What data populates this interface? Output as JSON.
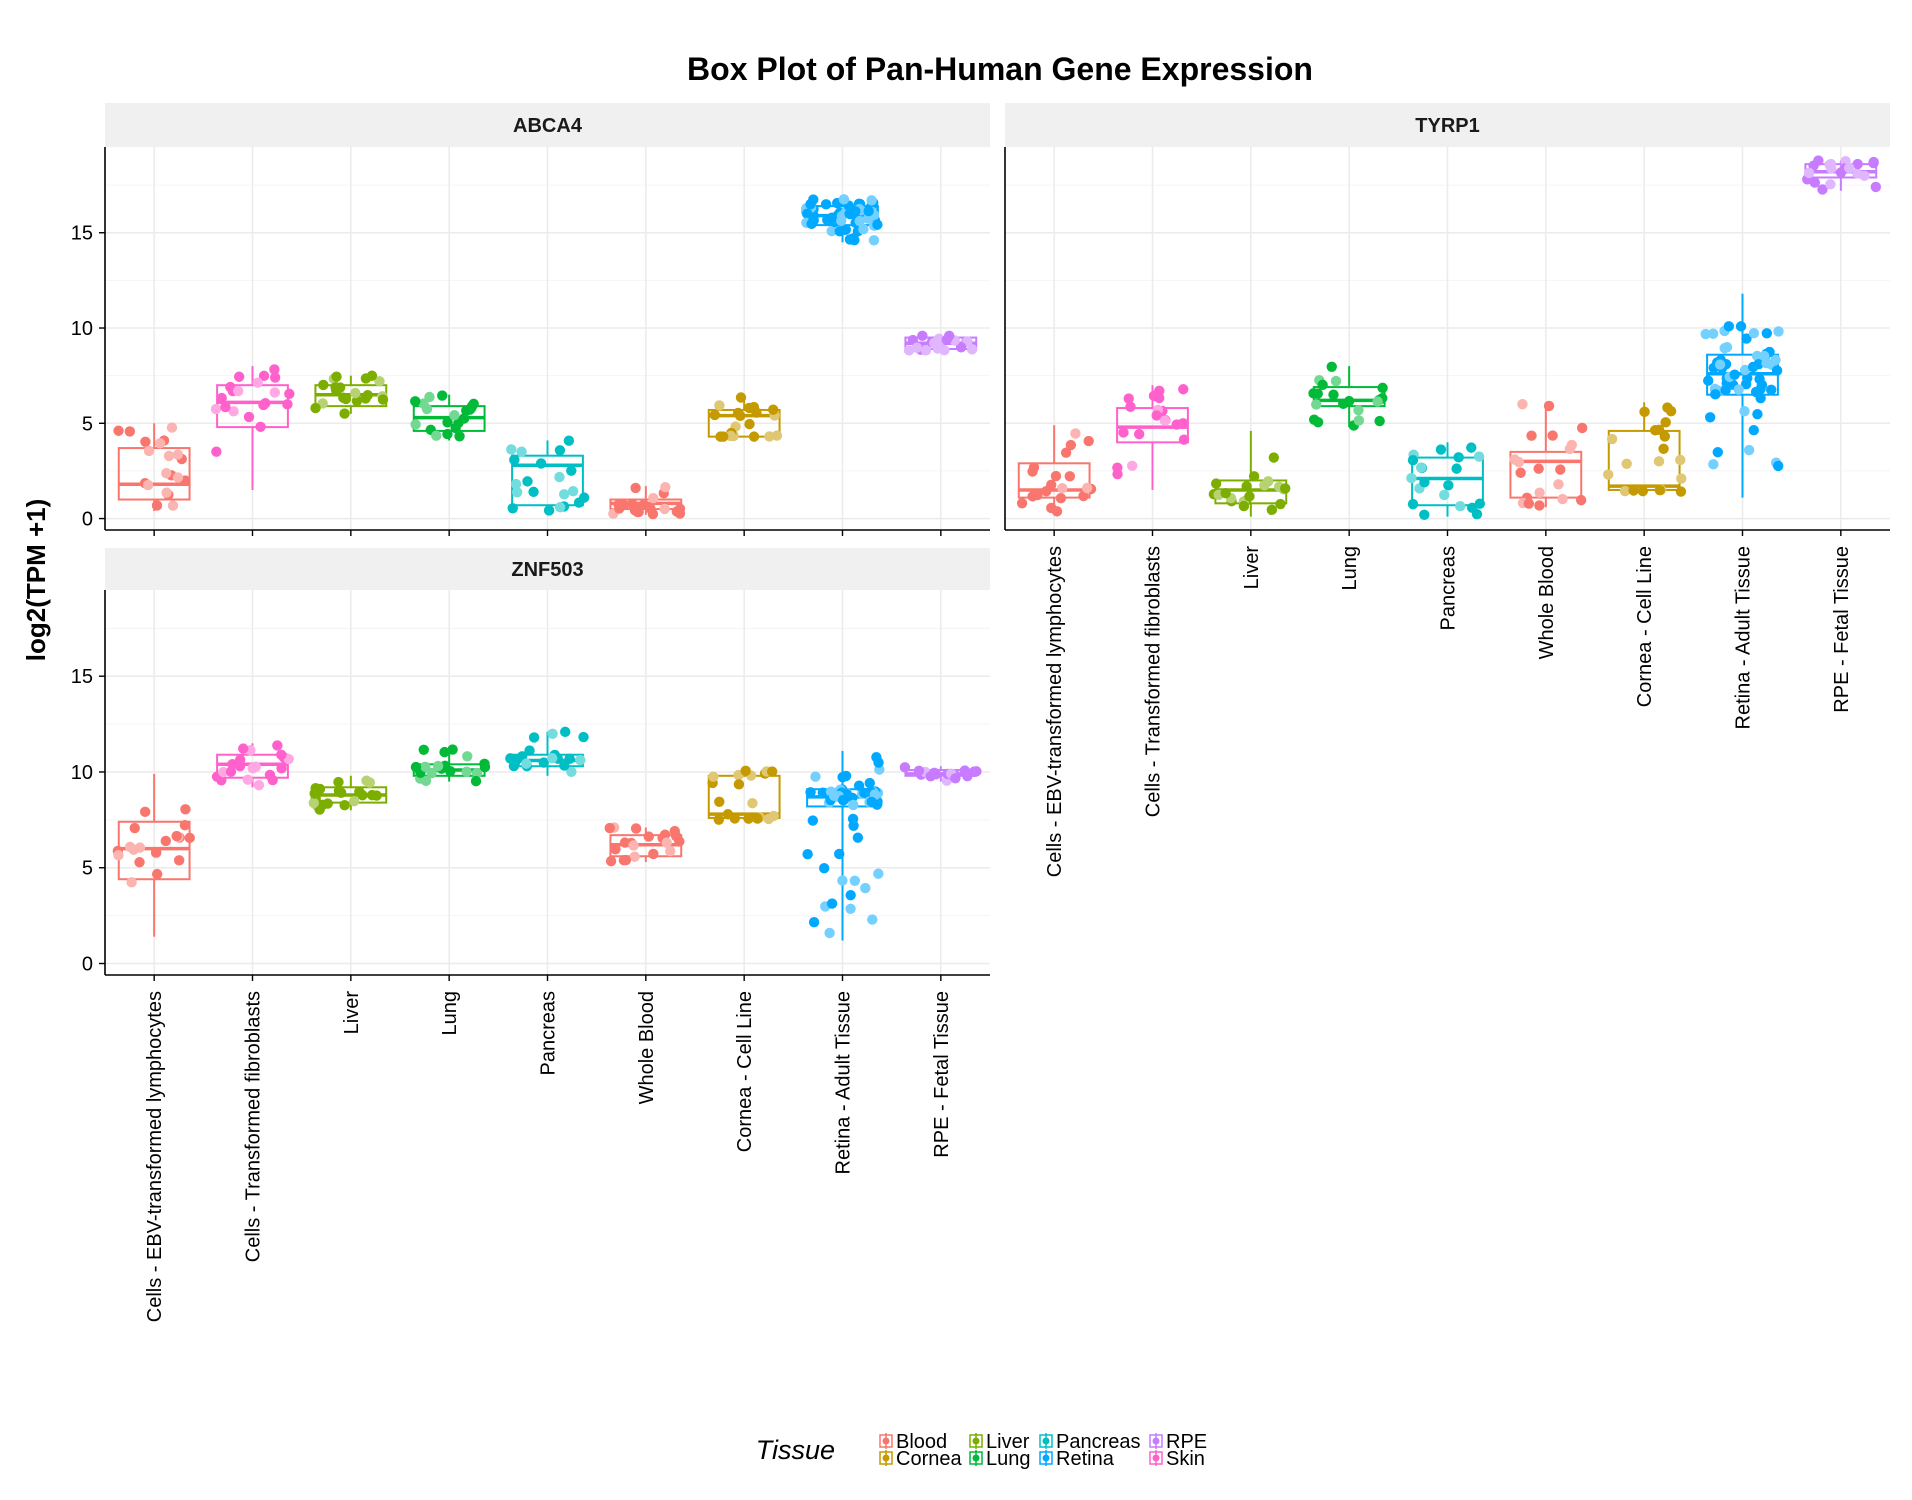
{
  "chart_data": {
    "type": "box",
    "title": "Box Plot of Pan-Human Gene Expression",
    "ylabel": "log2(TPM +1)",
    "ylim": [
      -0.6,
      19.5
    ],
    "yticks": [
      0,
      5,
      10,
      15
    ],
    "grid": true,
    "categories": [
      "Cells - EBV-transformed lymphocytes",
      "Cells - Transformed fibroblasts",
      "Liver",
      "Lung",
      "Pancreas",
      "Whole Blood",
      "Cornea - Cell Line",
      "Retina - Adult Tissue",
      "RPE - Fetal Tissue"
    ],
    "category_tissue": [
      "Blood",
      "Skin",
      "Liver",
      "Lung",
      "Pancreas",
      "Blood",
      "Cornea",
      "Retina",
      "RPE"
    ],
    "legend": {
      "title": "Tissue",
      "position": "bottom",
      "entries": [
        {
          "name": "Blood",
          "color": "#F8766D"
        },
        {
          "name": "Cornea",
          "color": "#C49A00"
        },
        {
          "name": "Liver",
          "color": "#7CAE00"
        },
        {
          "name": "Lung",
          "color": "#00BA38"
        },
        {
          "name": "Pancreas",
          "color": "#00BFC4"
        },
        {
          "name": "Retina",
          "color": "#00A9FF"
        },
        {
          "name": "RPE",
          "color": "#C77CFF"
        },
        {
          "name": "Skin",
          "color": "#FF61CC"
        }
      ]
    },
    "panels": [
      {
        "gene": "ABCA4",
        "boxes": [
          {
            "q1": 1.0,
            "median": 1.8,
            "q3": 3.7,
            "lo": 0.4,
            "hi": 5.0
          },
          {
            "q1": 4.8,
            "median": 6.1,
            "q3": 7.0,
            "lo": 1.5,
            "hi": 8.0
          },
          {
            "q1": 5.9,
            "median": 6.5,
            "q3": 7.0,
            "lo": 5.5,
            "hi": 7.5
          },
          {
            "q1": 4.6,
            "median": 5.3,
            "q3": 5.9,
            "lo": 4.1,
            "hi": 6.5
          },
          {
            "q1": 0.7,
            "median": 2.8,
            "q3": 3.3,
            "lo": 0.4,
            "hi": 4.1
          },
          {
            "q1": 0.5,
            "median": 0.8,
            "q3": 1.0,
            "lo": 0.2,
            "hi": 1.7
          },
          {
            "q1": 4.3,
            "median": 5.4,
            "q3": 5.7,
            "lo": 4.3,
            "hi": 6.5
          },
          {
            "q1": 15.4,
            "median": 15.9,
            "q3": 16.4,
            "lo": 14.5,
            "hi": 16.8
          },
          {
            "q1": 8.9,
            "median": 9.2,
            "q3": 9.5,
            "lo": 8.8,
            "hi": 9.6
          }
        ]
      },
      {
        "gene": "TYRP1",
        "boxes": [
          {
            "q1": 1.1,
            "median": 1.5,
            "q3": 2.9,
            "lo": 0.3,
            "hi": 4.9
          },
          {
            "q1": 4.0,
            "median": 4.8,
            "q3": 5.8,
            "lo": 1.5,
            "hi": 7.0
          },
          {
            "q1": 0.8,
            "median": 1.5,
            "q3": 2.0,
            "lo": 0.1,
            "hi": 4.6
          },
          {
            "q1": 5.9,
            "median": 6.2,
            "q3": 6.9,
            "lo": 4.8,
            "hi": 8.0
          },
          {
            "q1": 0.7,
            "median": 2.1,
            "q3": 3.2,
            "lo": 0.1,
            "hi": 4.0
          },
          {
            "q1": 1.1,
            "median": 3.0,
            "q3": 3.5,
            "lo": 0.6,
            "hi": 6.1
          },
          {
            "q1": 1.5,
            "median": 1.7,
            "q3": 4.6,
            "lo": 1.4,
            "hi": 6.1
          },
          {
            "q1": 6.5,
            "median": 7.6,
            "q3": 8.6,
            "lo": 1.1,
            "hi": 11.8
          },
          {
            "q1": 17.9,
            "median": 18.2,
            "q3": 18.6,
            "lo": 17.2,
            "hi": 18.8
          }
        ]
      },
      {
        "gene": "ZNF503",
        "boxes": [
          {
            "q1": 4.4,
            "median": 6.0,
            "q3": 7.4,
            "lo": 1.4,
            "hi": 9.9
          },
          {
            "q1": 9.7,
            "median": 10.4,
            "q3": 10.9,
            "lo": 9.2,
            "hi": 11.5
          },
          {
            "q1": 8.4,
            "median": 8.8,
            "q3": 9.2,
            "lo": 8.0,
            "hi": 9.8
          },
          {
            "q1": 9.8,
            "median": 10.1,
            "q3": 10.4,
            "lo": 9.5,
            "hi": 11.3
          },
          {
            "q1": 10.3,
            "median": 10.6,
            "q3": 10.9,
            "lo": 9.8,
            "hi": 12.1
          },
          {
            "q1": 5.6,
            "median": 6.2,
            "q3": 6.7,
            "lo": 5.3,
            "hi": 7.1
          },
          {
            "q1": 7.6,
            "median": 7.8,
            "q3": 9.8,
            "lo": 7.5,
            "hi": 10.1
          },
          {
            "q1": 8.2,
            "median": 8.7,
            "q3": 9.1,
            "lo": 1.2,
            "hi": 11.1
          },
          {
            "q1": 9.8,
            "median": 9.9,
            "q3": 10.1,
            "lo": 9.5,
            "hi": 10.3
          }
        ]
      }
    ]
  }
}
